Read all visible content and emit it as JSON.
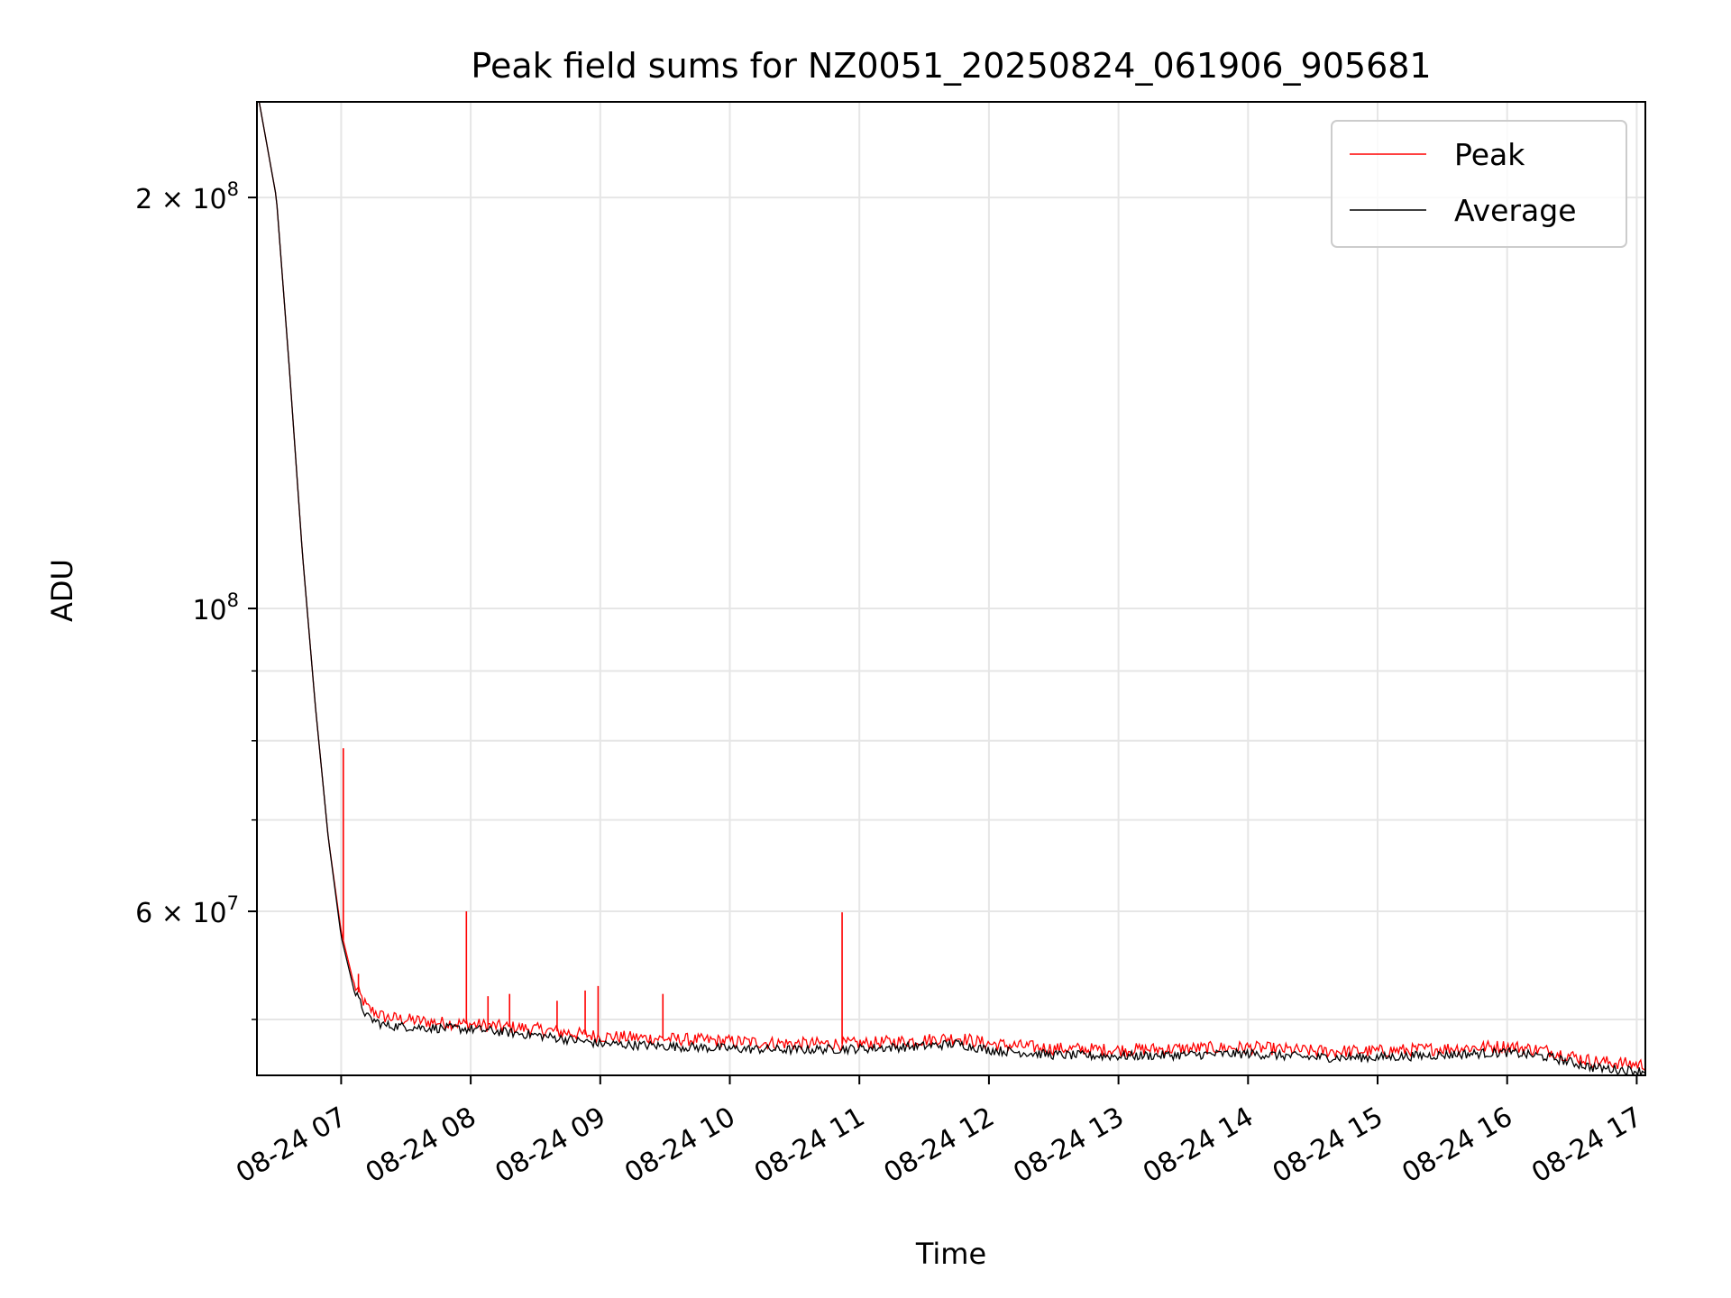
{
  "chart_data": {
    "type": "line",
    "title": "Peak field sums for NZ0051_20250824_061906_905681",
    "xlabel": "Time",
    "ylabel": "ADU",
    "x_axis": {
      "type": "datetime",
      "range": [
        "08-24 06:21",
        "08-24 17:04"
      ],
      "ticks": [
        "08-24 07",
        "08-24 08",
        "08-24 09",
        "08-24 10",
        "08-24 11",
        "08-24 12",
        "08-24 13",
        "08-24 14",
        "08-24 15",
        "08-24 16",
        "08-24 17"
      ]
    },
    "y_axis": {
      "scale": "log",
      "range": [
        45500000,
        235000000
      ],
      "major_ticks": [
        {
          "value": 200000000,
          "label": "2 × 10",
          "exponent": "8"
        },
        {
          "value": 100000000,
          "label": "10",
          "exponent": "8"
        },
        {
          "value": 60000000,
          "label": "6 × 10",
          "exponent": "7"
        }
      ],
      "minor_ticks": [
        50000000,
        70000000,
        80000000,
        90000000
      ]
    },
    "grid": true,
    "legend": {
      "placement": "top-right"
    },
    "series": [
      {
        "name": "Peak",
        "color": "#ff0000",
        "points": [
          [
            "08-24 06:21",
            240000000
          ],
          [
            "08-24 06:30",
            200000000
          ],
          [
            "08-24 06:36",
            150000000
          ],
          [
            "08-24 06:42",
            110000000
          ],
          [
            "08-24 06:48",
            85000000
          ],
          [
            "08-24 06:54",
            68000000
          ],
          [
            "08-24 07:00",
            58000000
          ],
          [
            "08-24 07:06",
            53000000
          ],
          [
            "08-24 07:12",
            51000000
          ],
          [
            "08-24 07:20",
            50200000
          ],
          [
            "08-24 07:40",
            49800000
          ],
          [
            "08-24 08:00",
            49600000
          ],
          [
            "08-24 08:30",
            49200000
          ],
          [
            "08-24 09:00",
            48600000
          ],
          [
            "08-24 09:30",
            48400000
          ],
          [
            "08-24 10:00",
            48200000
          ],
          [
            "08-24 10:30",
            48000000
          ],
          [
            "08-24 11:00",
            48000000
          ],
          [
            "08-24 11:30",
            48300000
          ],
          [
            "08-24 11:45",
            48500000
          ],
          [
            "08-24 12:00",
            48000000
          ],
          [
            "08-24 12:30",
            47600000
          ],
          [
            "08-24 13:00",
            47500000
          ],
          [
            "08-24 13:30",
            47600000
          ],
          [
            "08-24 14:00",
            47700000
          ],
          [
            "08-24 14:30",
            47400000
          ],
          [
            "08-24 15:00",
            47400000
          ],
          [
            "08-24 15:30",
            47600000
          ],
          [
            "08-24 16:00",
            47800000
          ],
          [
            "08-24 16:20",
            47400000
          ],
          [
            "08-24 16:40",
            46600000
          ],
          [
            "08-24 17:04",
            46300000
          ]
        ],
        "spikes": [
          [
            "08-24 07:01",
            79000000
          ],
          [
            "08-24 07:08",
            54000000
          ],
          [
            "08-24 07:58",
            60000000
          ],
          [
            "08-24 08:08",
            52000000
          ],
          [
            "08-24 08:18",
            52200000
          ],
          [
            "08-24 08:40",
            51600000
          ],
          [
            "08-24 08:53",
            52500000
          ],
          [
            "08-24 08:59",
            52900000
          ],
          [
            "08-24 09:29",
            52200000
          ],
          [
            "08-24 10:52",
            59900000
          ]
        ]
      },
      {
        "name": "Average",
        "color": "#000000",
        "points": [
          [
            "08-24 06:21",
            240000000
          ],
          [
            "08-24 06:30",
            200000000
          ],
          [
            "08-24 06:36",
            150000000
          ],
          [
            "08-24 06:42",
            110000000
          ],
          [
            "08-24 06:48",
            85000000
          ],
          [
            "08-24 06:54",
            68000000
          ],
          [
            "08-24 07:00",
            57500000
          ],
          [
            "08-24 07:06",
            52500000
          ],
          [
            "08-24 07:12",
            50200000
          ],
          [
            "08-24 07:20",
            49500000
          ],
          [
            "08-24 07:40",
            49300000
          ],
          [
            "08-24 08:00",
            49200000
          ],
          [
            "08-24 08:30",
            48700000
          ],
          [
            "08-24 09:00",
            48000000
          ],
          [
            "08-24 09:30",
            47800000
          ],
          [
            "08-24 10:00",
            47600000
          ],
          [
            "08-24 10:30",
            47500000
          ],
          [
            "08-24 11:00",
            47600000
          ],
          [
            "08-24 11:30",
            47800000
          ],
          [
            "08-24 11:45",
            48000000
          ],
          [
            "08-24 12:00",
            47500000
          ],
          [
            "08-24 12:30",
            47100000
          ],
          [
            "08-24 13:00",
            47000000
          ],
          [
            "08-24 13:30",
            47100000
          ],
          [
            "08-24 14:00",
            47200000
          ],
          [
            "08-24 14:30",
            46900000
          ],
          [
            "08-24 15:00",
            46900000
          ],
          [
            "08-24 15:30",
            47100000
          ],
          [
            "08-24 16:00",
            47300000
          ],
          [
            "08-24 16:20",
            46900000
          ],
          [
            "08-24 16:40",
            46100000
          ],
          [
            "08-24 17:04",
            45800000
          ]
        ]
      }
    ]
  }
}
